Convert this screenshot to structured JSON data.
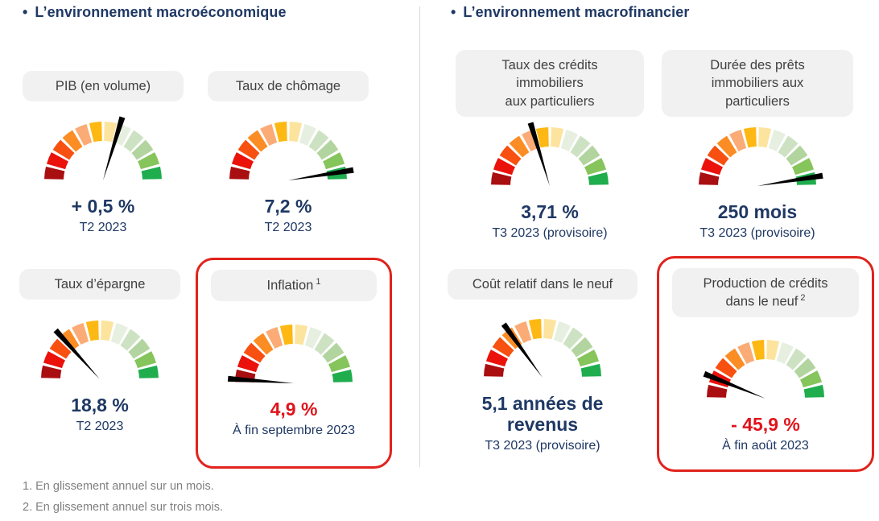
{
  "colors": {
    "navy": "#1f3864",
    "value_red": "#e0131b",
    "label_box_bg": "#f1f1f1",
    "label_text": "#404040",
    "footnote_gray": "#7f7f7f",
    "divider": "#d9d9d9",
    "highlight_border": "#e0231c",
    "needle": "#000000"
  },
  "sections": {
    "left": {
      "bullet": "•",
      "title": "L’environnement macroéconomique"
    },
    "right": {
      "bullet": "•",
      "title": "L’environnement macrofinancier"
    }
  },
  "footnotes": [
    "1. En glissement annuel sur un mois.",
    "2. En glissement annuel sur trois mois."
  ],
  "gauge_scale": {
    "arc_degrees": 180,
    "segment_count": 12,
    "segment_colors": [
      "#a90e11",
      "#ea120b",
      "#f75010",
      "#fb8d24",
      "#fbab76",
      "#fdb813",
      "#fce49e",
      "#e6efe0",
      "#cde2c2",
      "#b2d49f",
      "#86c45c",
      "#1fad4e"
    ],
    "needle_color": "#000000",
    "angle_convention": "0 = pointing right, 90 = up, 180 = left"
  },
  "chart_data": [
    {
      "type": "gauge",
      "id": "pib",
      "title": "PIB (en volume)",
      "value": "+ 0,5 %",
      "period": "T2 2023",
      "needle_angle_deg": 73,
      "value_color": "#1f3864",
      "highlighted": false
    },
    {
      "type": "gauge",
      "id": "chomage",
      "title": "Taux de chômage",
      "value": "7,2 %",
      "period": "T2 2023",
      "needle_angle_deg": 9,
      "value_color": "#1f3864",
      "highlighted": false
    },
    {
      "type": "gauge",
      "id": "epargne",
      "title": "Taux d’épargne",
      "value": "18,8 %",
      "period": "T2 2023",
      "needle_angle_deg": 132,
      "value_color": "#1f3864",
      "highlighted": false
    },
    {
      "type": "gauge",
      "id": "inflation",
      "title": "Inflation",
      "sup": "1",
      "value": "4,9 %",
      "period": "À fin septembre 2023",
      "needle_angle_deg": 176,
      "value_color": "#e0131b",
      "highlighted": true
    },
    {
      "type": "gauge",
      "id": "credits",
      "title": "Taux des crédits\nimmobiliers\naux particuliers",
      "value": "3,71 %",
      "period": "T3 2023 (provisoire)",
      "needle_angle_deg": 107,
      "value_color": "#1f3864",
      "highlighted": false
    },
    {
      "type": "gauge",
      "id": "duree",
      "title": "Durée des prêts\nimmobiliers aux\nparticuliers",
      "value": "250 mois",
      "period": "T3 2023 (provisoire)",
      "needle_angle_deg": 9,
      "value_color": "#1f3864",
      "highlighted": false
    },
    {
      "type": "gauge",
      "id": "cout",
      "title": "Coût relatif dans le neuf",
      "value": "5,1 années de\nrevenus",
      "period": "T3 2023 (provisoire)",
      "needle_angle_deg": 126,
      "value_color": "#1f3864",
      "highlighted": false
    },
    {
      "type": "gauge",
      "id": "production",
      "title": "Production de crédits\ndans le neuf",
      "sup": "2",
      "value": "- 45,9 %",
      "period": "À fin août 2023",
      "needle_angle_deg": 158,
      "value_color": "#e0131b",
      "highlighted": true
    }
  ]
}
